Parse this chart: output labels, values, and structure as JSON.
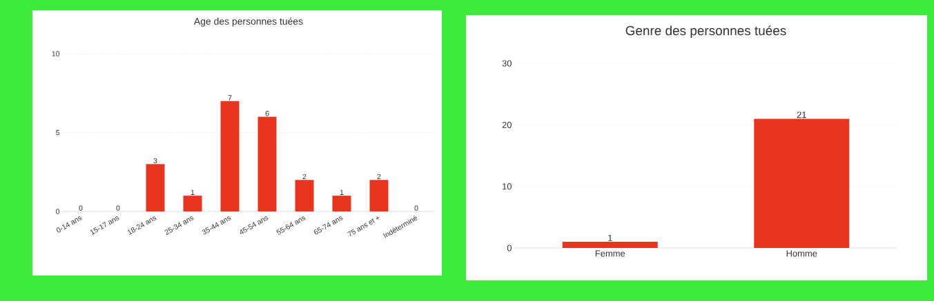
{
  "chart_data": [
    {
      "type": "bar",
      "title": "Age des personnes tuées",
      "categories": [
        "0-14 ans",
        "15-17 ans",
        "18-24 ans",
        "25-34 ans",
        "35-44 ans",
        "45-54 ans",
        "55-64 ans",
        "65-74 ans",
        "75 ans et +",
        "Indéterminé"
      ],
      "values": [
        0,
        0,
        3,
        1,
        7,
        6,
        2,
        1,
        2,
        0
      ],
      "color": "#e8351f",
      "ylim": [
        0,
        10
      ],
      "yticks": [
        0,
        5,
        10
      ],
      "grid": "y",
      "data_labels": true
    },
    {
      "type": "bar",
      "title": "Genre des personnes tuées",
      "categories": [
        "Femme",
        "Homme"
      ],
      "values": [
        1,
        21
      ],
      "color": "#e8351f",
      "ylim": [
        0,
        30
      ],
      "yticks": [
        0,
        10,
        20,
        30
      ],
      "grid": "y",
      "data_labels": true
    }
  ]
}
